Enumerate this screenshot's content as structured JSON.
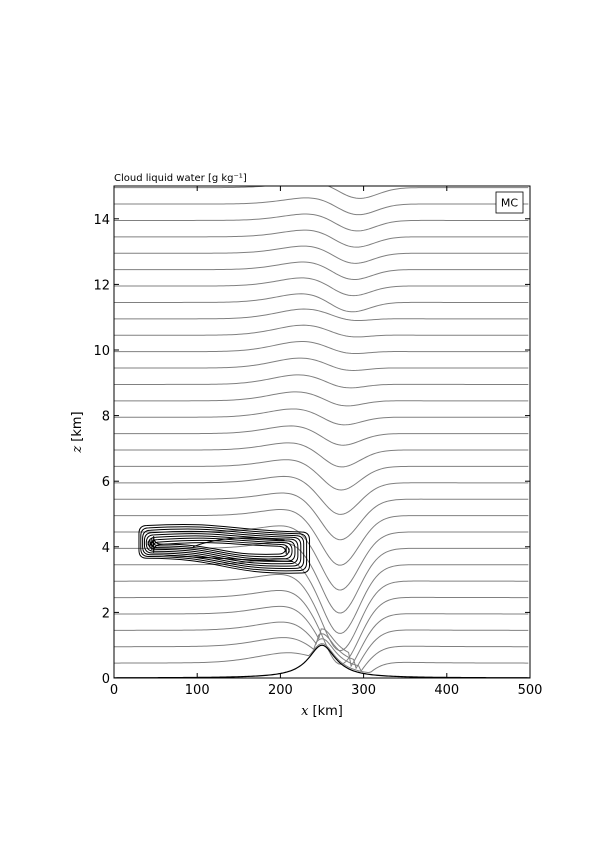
{
  "chart_data": {
    "type": "line",
    "title": "Cloud liquid water [g kg⁻¹]",
    "panel_label": "MC",
    "xlabel": {
      "var": "x",
      "unit": "[km]"
    },
    "ylabel": {
      "var": "z",
      "unit": "[km]"
    },
    "xlim": [
      0,
      500
    ],
    "ylim": [
      0,
      15
    ],
    "xticks": [
      0,
      100,
      200,
      300,
      400,
      500
    ],
    "yticks": [
      0,
      2,
      4,
      6,
      8,
      10,
      12,
      14
    ],
    "grid": false,
    "streamline_color": "#808080",
    "contour_color": "#000000",
    "mountain": {
      "center_km": 250,
      "height_km": 1.0,
      "half_width_km": 20
    },
    "cloud_region": {
      "x_range_km": [
        30,
        235
      ],
      "z_range_km": [
        3.2,
        4.8
      ]
    }
  }
}
